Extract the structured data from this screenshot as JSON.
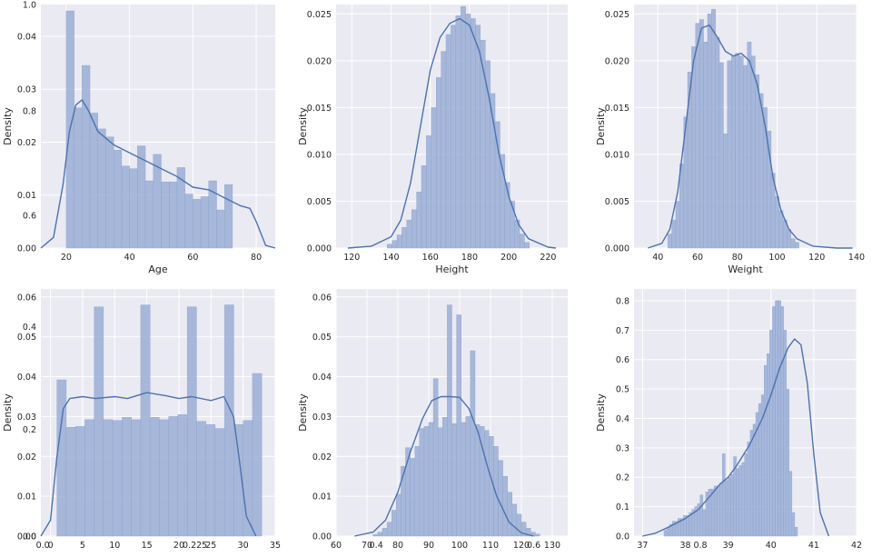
{
  "colors": {
    "panel_bg": "#eaeaf2",
    "grid": "#ffffff",
    "bar_fill": "#9aaed6",
    "bar_edge": "#8ca3cf",
    "kde_line": "#4c72b0",
    "text": "#262626"
  },
  "chart_data": [
    {
      "type": "histogram+kde",
      "xlabel": "Age",
      "ylabel": "Density",
      "grid": true,
      "xlim": [
        12,
        86
      ],
      "ylim": [
        0,
        0.046
      ],
      "xticks": [
        20,
        40,
        60,
        80
      ],
      "yticks": [
        0.0,
        0.01,
        0.02,
        0.03,
        0.04
      ],
      "extra_yticks": [
        {
          "label": "1.0",
          "y": 0.046
        },
        {
          "label": "0.8",
          "y": 0.0259
        },
        {
          "label": "0.6",
          "y": 0.0062
        }
      ],
      "bins": {
        "start": 20,
        "width": 2.5,
        "values": [
          0.0448,
          0.0265,
          0.0345,
          0.0255,
          0.0225,
          0.021,
          0.0185,
          0.0155,
          0.015,
          0.0193,
          0.0127,
          0.0177,
          0.0125,
          0.0125,
          0.0152,
          0.0102,
          0.0092,
          0.0097,
          0.0127,
          0.0072,
          0.012
        ]
      },
      "kde": {
        "x": [
          12,
          16,
          19,
          21,
          23,
          25,
          27,
          30,
          35,
          40,
          45,
          50,
          55,
          60,
          65,
          70,
          75,
          78,
          80,
          83,
          86
        ],
        "y": [
          0.0,
          0.002,
          0.012,
          0.022,
          0.027,
          0.028,
          0.026,
          0.022,
          0.0195,
          0.018,
          0.0165,
          0.015,
          0.0135,
          0.0115,
          0.011,
          0.0095,
          0.008,
          0.0075,
          0.005,
          0.0005,
          0.0
        ]
      }
    },
    {
      "type": "histogram+kde",
      "xlabel": "Height",
      "ylabel": "Density",
      "grid": true,
      "xlim": [
        112,
        230
      ],
      "ylim": [
        0,
        0.026
      ],
      "xticks": [
        120,
        140,
        160,
        180,
        200,
        220
      ],
      "yticks": [
        0.0,
        0.005,
        0.01,
        0.015,
        0.02,
        0.025
      ],
      "extra_yticks": [],
      "bins": {
        "start": 138,
        "width": 2.5,
        "values": [
          0.0004,
          0.0008,
          0.0014,
          0.0022,
          0.003,
          0.0041,
          0.006,
          0.0088,
          0.012,
          0.015,
          0.0182,
          0.021,
          0.0228,
          0.0238,
          0.0248,
          0.0258,
          0.025,
          0.0245,
          0.0238,
          0.0222,
          0.02,
          0.0165,
          0.0135,
          0.01,
          0.007,
          0.005,
          0.003,
          0.0015,
          0.0006
        ]
      },
      "kde": {
        "x": [
          118,
          130,
          140,
          145,
          150,
          155,
          160,
          165,
          170,
          175,
          180,
          185,
          190,
          195,
          200,
          205,
          210,
          220,
          224
        ],
        "y": [
          0.0,
          0.0002,
          0.0012,
          0.003,
          0.007,
          0.013,
          0.019,
          0.0225,
          0.024,
          0.0245,
          0.0238,
          0.021,
          0.016,
          0.01,
          0.0055,
          0.0025,
          0.001,
          0.0001,
          0.0
        ]
      }
    },
    {
      "type": "histogram+kde",
      "xlabel": "Weight",
      "ylabel": "Density",
      "grid": true,
      "xlim": [
        28,
        140
      ],
      "ylim": [
        0,
        0.026
      ],
      "xticks": [
        40,
        60,
        80,
        100,
        120,
        140
      ],
      "yticks": [
        0.0,
        0.005,
        0.01,
        0.015,
        0.02,
        0.025
      ],
      "extra_yticks": [],
      "bins": {
        "start": 45,
        "width": 2,
        "values": [
          0.0015,
          0.003,
          0.005,
          0.009,
          0.014,
          0.0188,
          0.0215,
          0.024,
          0.0244,
          0.022,
          0.025,
          0.0255,
          0.0225,
          0.0198,
          0.0122,
          0.02,
          0.0205,
          0.0208,
          0.0205,
          0.0195,
          0.022,
          0.0205,
          0.0185,
          0.0165,
          0.015,
          0.0125,
          0.008,
          0.0055,
          0.004,
          0.003,
          0.002,
          0.001,
          0.0006
        ]
      },
      "kde": {
        "x": [
          35,
          42,
          46,
          50,
          54,
          58,
          62,
          66,
          70,
          74,
          78,
          82,
          86,
          90,
          94,
          98,
          102,
          106,
          110,
          118,
          130,
          138
        ],
        "y": [
          0.0,
          0.0005,
          0.002,
          0.006,
          0.013,
          0.02,
          0.0235,
          0.0238,
          0.0225,
          0.021,
          0.0205,
          0.0208,
          0.02,
          0.0175,
          0.013,
          0.0075,
          0.004,
          0.002,
          0.001,
          0.0002,
          0.0,
          0.0
        ]
      }
    },
    {
      "type": "histogram+kde",
      "xlabel": "",
      "ylabel": "Density",
      "grid": true,
      "xlim": [
        -1.5,
        35
      ],
      "ylim": [
        0,
        0.062
      ],
      "xticks": [
        0,
        5,
        10,
        15,
        20,
        25,
        30,
        35
      ],
      "extra_xticks": [
        {
          "label": "0.0",
          "x": -1.2
        },
        {
          "label": "0.225",
          "x": 22.5
        }
      ],
      "yticks": [
        0.0,
        0.01,
        0.02,
        0.03,
        0.04,
        0.05,
        0.06
      ],
      "extra_yticks": [
        {
          "label": "0.4",
          "y": 0.0525
        },
        {
          "label": "0.2",
          "y": 0.0268
        },
        {
          "label": "0.0",
          "y": 0.0
        }
      ],
      "bins": {
        "start": 1,
        "width": 1.45,
        "values": [
          0.0392,
          0.0273,
          0.0275,
          0.0292,
          0.0575,
          0.0292,
          0.029,
          0.0298,
          0.0292,
          0.058,
          0.0298,
          0.0292,
          0.03,
          0.0305,
          0.0575,
          0.0288,
          0.028,
          0.027,
          0.058,
          0.028,
          0.029,
          0.0408
        ]
      },
      "kde": {
        "x": [
          -1.5,
          0,
          1,
          2,
          3,
          5,
          7,
          10,
          12,
          15,
          18,
          20,
          22,
          25,
          27,
          28.5,
          29.5,
          30.5,
          32
        ],
        "y": [
          0.0,
          0.004,
          0.02,
          0.032,
          0.0345,
          0.035,
          0.0345,
          0.035,
          0.0345,
          0.036,
          0.0352,
          0.0345,
          0.035,
          0.034,
          0.035,
          0.03,
          0.018,
          0.005,
          0.0
        ]
      }
    },
    {
      "type": "histogram+kde",
      "xlabel": "",
      "ylabel": "Density",
      "grid": true,
      "xlim": [
        60,
        135
      ],
      "ylim": [
        0,
        0.062
      ],
      "xticks": [
        60,
        70,
        80,
        90,
        100,
        110,
        120,
        130
      ],
      "extra_xticks": [
        {
          "label": "0.4",
          "x": 73
        },
        {
          "label": "0.6",
          "x": 124
        }
      ],
      "yticks": [
        0.0,
        0.01,
        0.02,
        0.03,
        0.04,
        0.05,
        0.06
      ],
      "extra_yticks": [],
      "bins": {
        "start": 72,
        "width": 1.5,
        "values": [
          0.0004,
          0.001,
          0.002,
          0.0035,
          0.0065,
          0.0105,
          0.0175,
          0.0222,
          0.0195,
          0.0225,
          0.027,
          0.0275,
          0.0285,
          0.0395,
          0.0272,
          0.0298,
          0.058,
          0.0282,
          0.0555,
          0.0285,
          0.03,
          0.0465,
          0.028,
          0.0275,
          0.0265,
          0.025,
          0.0225,
          0.019,
          0.015,
          0.011,
          0.008,
          0.0055,
          0.0035,
          0.002,
          0.001,
          0.0005
        ]
      },
      "kde": {
        "x": [
          66,
          72,
          76,
          80,
          84,
          88,
          91,
          94,
          97,
          100,
          103,
          106,
          109,
          112,
          116,
          120,
          124
        ],
        "y": [
          0.0,
          0.001,
          0.004,
          0.011,
          0.021,
          0.0295,
          0.034,
          0.035,
          0.035,
          0.0348,
          0.032,
          0.026,
          0.0175,
          0.01,
          0.0035,
          0.0008,
          0.0
        ]
      }
    },
    {
      "type": "histogram+kde",
      "xlabel": "",
      "ylabel": "Density",
      "grid": true,
      "xlim": [
        36.8,
        42
      ],
      "ylim": [
        0,
        0.84
      ],
      "xticks": [
        37,
        38,
        39,
        40,
        41,
        42
      ],
      "extra_xticks": [
        {
          "label": "0.8",
          "x": 38.35
        }
      ],
      "yticks": [
        0.0,
        0.1,
        0.2,
        0.3,
        0.4,
        0.5,
        0.6,
        0.7,
        0.8
      ],
      "extra_yticks": [],
      "bins": {
        "start": 37.5,
        "width": 0.065,
        "values": [
          0.02,
          0.03,
          0.04,
          0.05,
          0.05,
          0.06,
          0.06,
          0.07,
          0.07,
          0.08,
          0.09,
          0.1,
          0.11,
          0.14,
          0.09,
          0.15,
          0.16,
          0.16,
          0.17,
          0.17,
          0.18,
          0.28,
          0.19,
          0.2,
          0.21,
          0.27,
          0.23,
          0.24,
          0.25,
          0.28,
          0.32,
          0.36,
          0.38,
          0.42,
          0.45,
          0.48,
          0.58,
          0.62,
          0.7,
          0.78,
          0.8,
          0.8,
          0.78,
          0.7,
          0.5,
          0.22,
          0.08,
          0.03
        ]
      },
      "kde": {
        "x": [
          37.0,
          37.3,
          37.6,
          38.0,
          38.3,
          38.6,
          38.8,
          39.0,
          39.2,
          39.5,
          39.8,
          40.0,
          40.2,
          40.4,
          40.55,
          40.7,
          40.85,
          41.0,
          41.15,
          41.35
        ],
        "y": [
          0.0,
          0.01,
          0.03,
          0.06,
          0.09,
          0.14,
          0.175,
          0.2,
          0.24,
          0.31,
          0.4,
          0.48,
          0.57,
          0.64,
          0.67,
          0.65,
          0.52,
          0.28,
          0.08,
          0.0
        ]
      }
    }
  ]
}
